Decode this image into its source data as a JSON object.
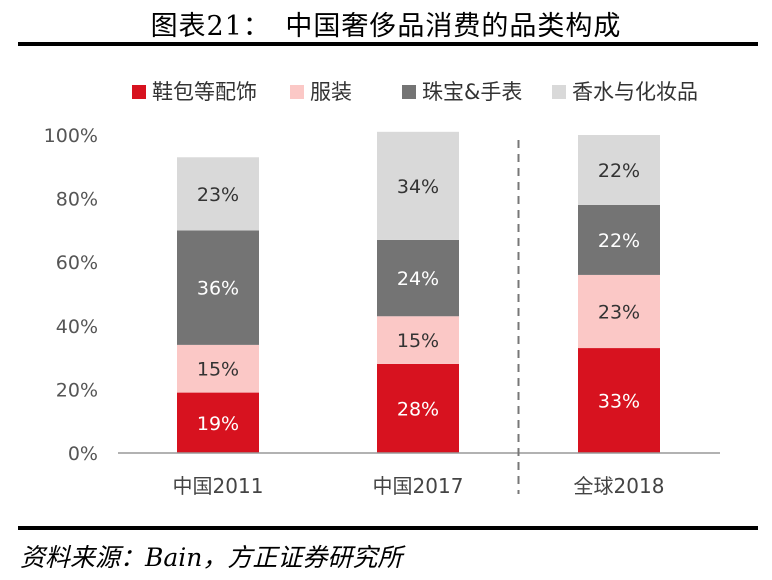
{
  "title": "图表21：　中国奢侈品消费的品类构成",
  "source": "资料来源：Bain，方正证券研究所",
  "chart_data": {
    "type": "bar",
    "stacked": true,
    "categories": [
      "中国2011",
      "中国2017",
      "全球2018"
    ],
    "series": [
      {
        "name": "鞋包等配饰",
        "color": "#d7121f",
        "label_color": "#ffffff",
        "values": [
          19,
          28,
          33
        ],
        "labels": [
          "19%",
          "28%",
          "33%"
        ]
      },
      {
        "name": "服装",
        "color": "#fbc8c6",
        "label_color": "#333333",
        "values": [
          15,
          15,
          23
        ],
        "labels": [
          "15%",
          "15%",
          "23%"
        ]
      },
      {
        "name": "珠宝&手表",
        "color": "#747474",
        "label_color": "#ffffff",
        "values": [
          36,
          24,
          22
        ],
        "labels": [
          "36%",
          "24%",
          "22%"
        ]
      },
      {
        "name": "香水与化妆品",
        "color": "#d9d9d9",
        "label_color": "#333333",
        "values": [
          23,
          34,
          22
        ],
        "labels": [
          "23%",
          "34%",
          "22%"
        ]
      }
    ],
    "yticks": [
      "0%",
      "20%",
      "40%",
      "60%",
      "80%",
      "100%"
    ],
    "ylim": [
      0,
      100
    ],
    "legend": "top",
    "separator_before_category": 2,
    "grid": false
  }
}
